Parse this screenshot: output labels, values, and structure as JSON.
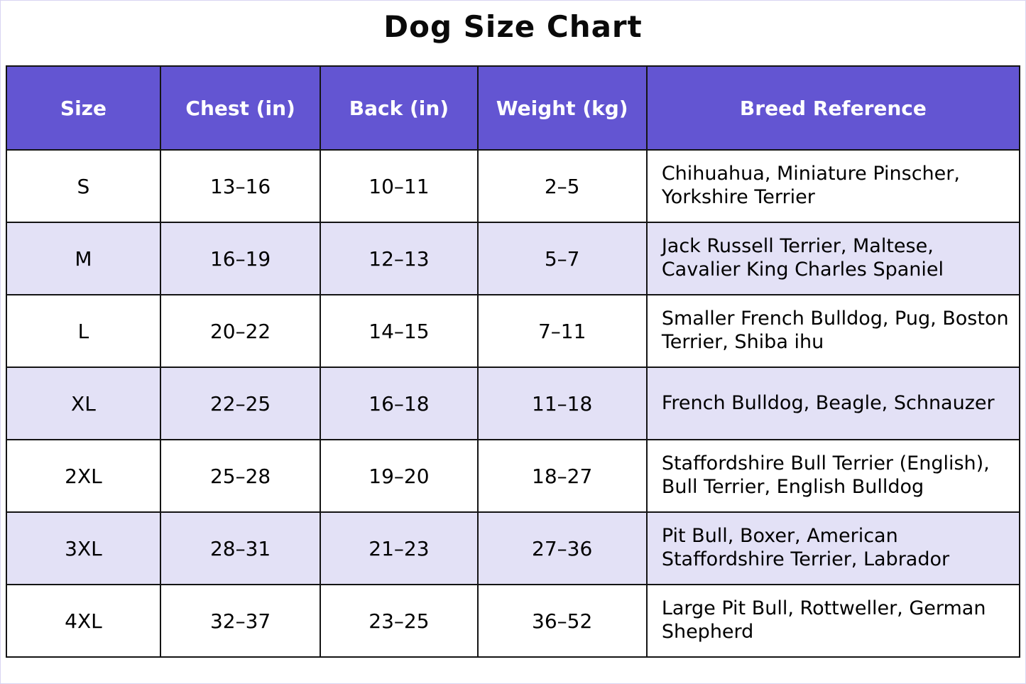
{
  "title": "Dog Size Chart",
  "colors": {
    "header_bg": "#6355d2",
    "header_text": "#ffffff",
    "row_bg": "#ffffff",
    "row_alt_bg": "#e3e1f6",
    "border": "#141414"
  },
  "chart_data": {
    "type": "table",
    "title": "Dog Size Chart",
    "columns": [
      "Size",
      "Chest (in)",
      "Back (in)",
      "Weight (kg)",
      "Breed Reference"
    ],
    "rows": [
      [
        "S",
        "13–16",
        "10–11",
        "2–5",
        "Chihuahua, Miniature Pinscher, Yorkshire Terrier"
      ],
      [
        "M",
        "16–19",
        "12–13",
        "5–7",
        "Jack Russell Terrier, Maltese, Cavalier King Charles Spaniel"
      ],
      [
        "L",
        "20–22",
        "14–15",
        "7–11",
        "Smaller French Bulldog, Pug, Boston Terrier, Shiba ihu"
      ],
      [
        "XL",
        "22–25",
        "16–18",
        "11–18",
        "French Bulldog, Beagle, Schnauzer"
      ],
      [
        "2XL",
        "25–28",
        "19–20",
        "18–27",
        "Staffordshire Bull Terrier (English), Bull Terrier, English Bulldog"
      ],
      [
        "3XL",
        "28–31",
        "21–23",
        "27–36",
        "Pit Bull, Boxer, American Staffordshire Terrier, Labrador"
      ],
      [
        "4XL",
        "32–37",
        "23–25",
        "36–52",
        "Large Pit Bull, Rottweller, German Shepherd"
      ]
    ]
  }
}
